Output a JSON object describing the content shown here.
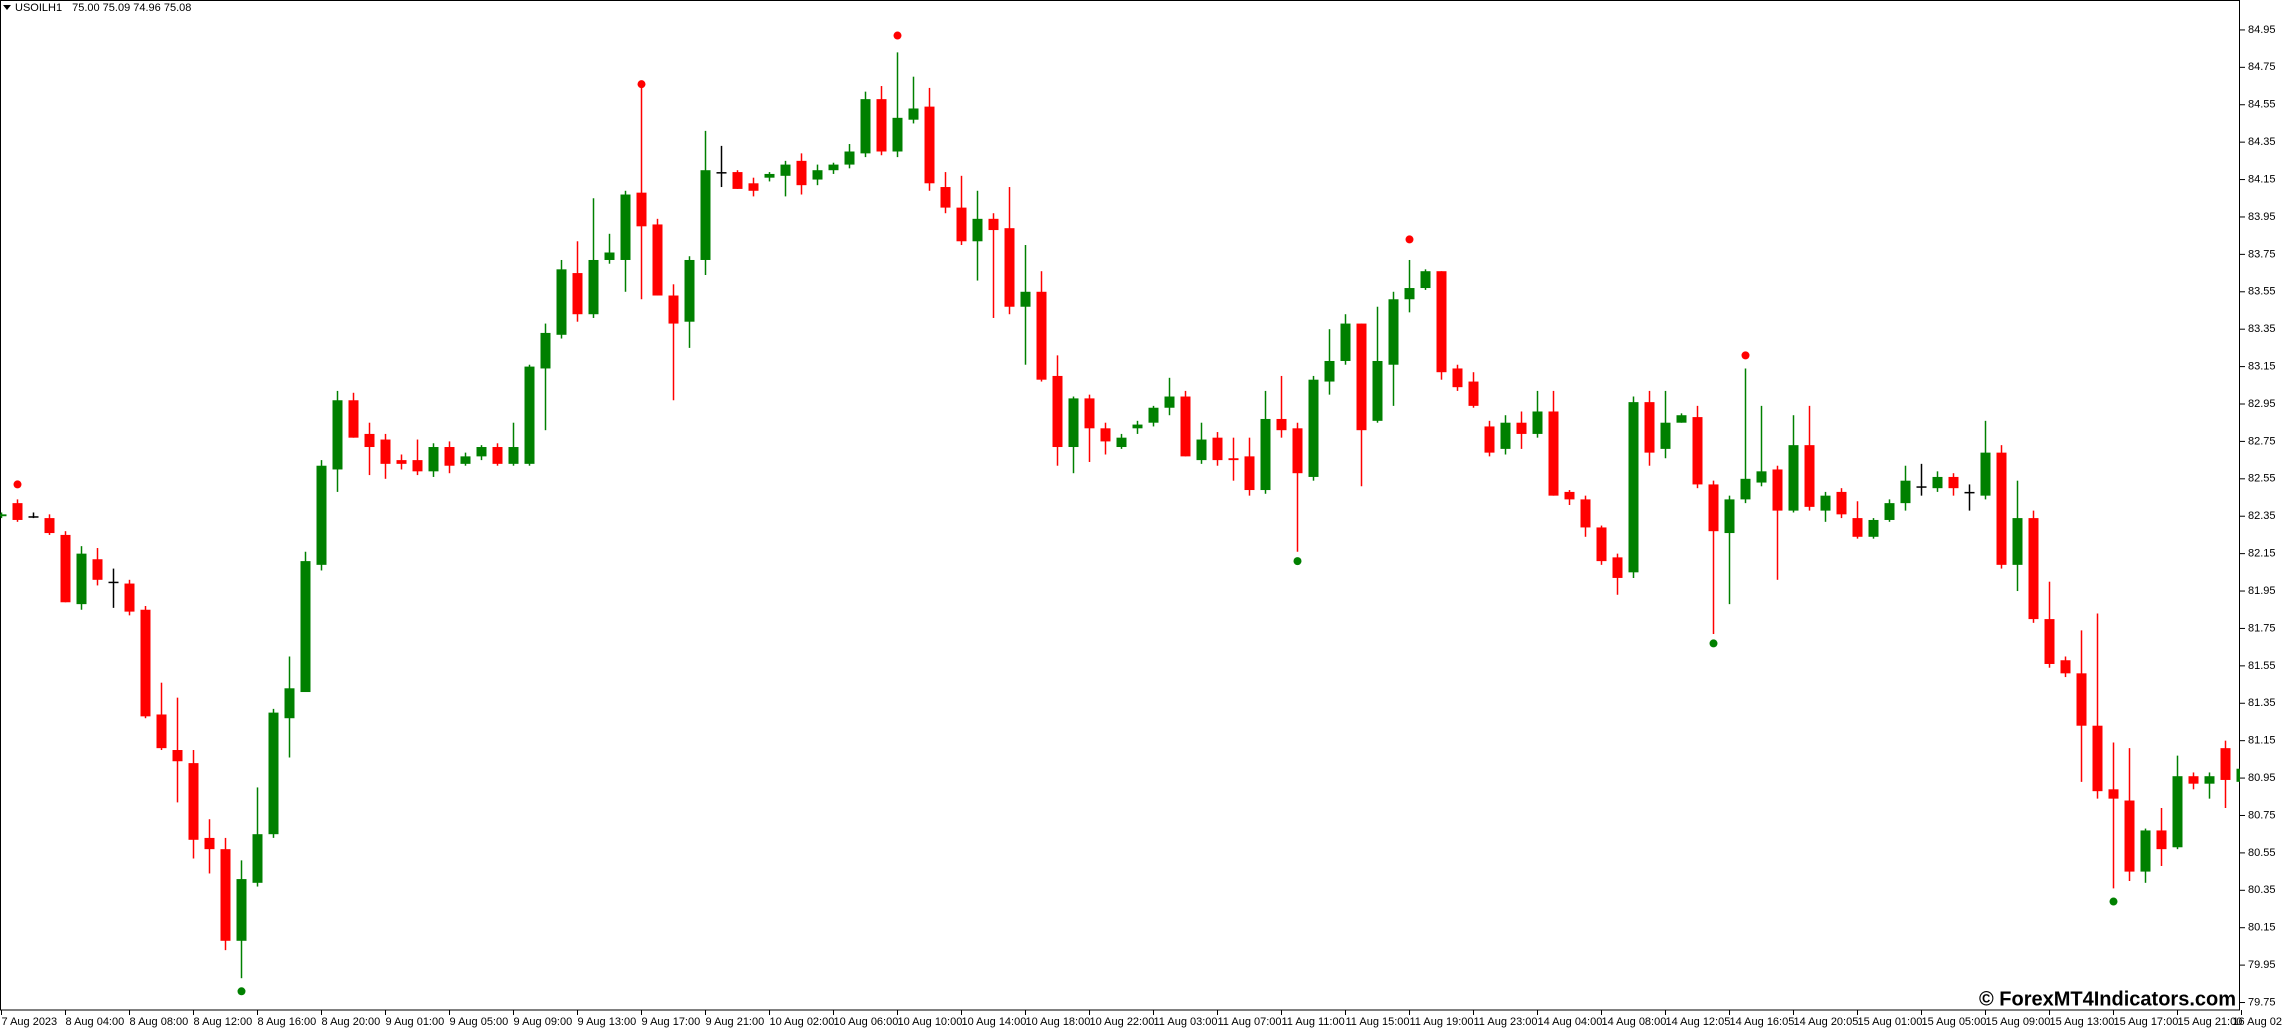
{
  "chart_data": {
    "type": "candlestick",
    "title": "USOILH1",
    "subtitle": "75.00 75.09 74.96 75.08",
    "annotation": "© ForexMT4Indicators.com",
    "up_color": "#008000",
    "down_color": "#ff0000",
    "doji_color": "#000000",
    "categories": [
      "7 Aug 2023",
      null,
      null,
      null,
      "8 Aug 04:00",
      null,
      null,
      null,
      "8 Aug 08:00",
      null,
      null,
      null,
      "8 Aug 12:00",
      null,
      null,
      null,
      "8 Aug 16:00",
      null,
      null,
      null,
      "8 Aug 20:00",
      null,
      null,
      null,
      "9 Aug 01:00",
      null,
      null,
      null,
      "9 Aug 05:00",
      null,
      null,
      null,
      "9 Aug 09:00",
      null,
      null,
      null,
      "9 Aug 13:00",
      null,
      null,
      null,
      "9 Aug 17:00",
      null,
      null,
      null,
      "9 Aug 21:00",
      null,
      null,
      null,
      "10 Aug 02:00",
      null,
      null,
      null,
      "10 Aug 06:00",
      null,
      null,
      null,
      "10 Aug 10:00",
      null,
      null,
      null,
      "10 Aug 14:00",
      null,
      null,
      null,
      "10 Aug 18:00",
      null,
      null,
      null,
      "10 Aug 22:00",
      null,
      null,
      null,
      "11 Aug 03:00",
      null,
      null,
      null,
      "11 Aug 07:00",
      null,
      null,
      null,
      "11 Aug 11:00",
      null,
      null,
      null,
      "11 Aug 15:00",
      null,
      null,
      null,
      "11 Aug 19:00",
      null,
      null,
      null,
      "11 Aug 23:00",
      null,
      null,
      null,
      "14 Aug 04:00",
      null,
      null,
      null,
      "14 Aug 08:00",
      null,
      null,
      null,
      "14 Aug 12:05",
      null,
      null,
      null,
      "14 Aug 16:05",
      null,
      null,
      null,
      "14 Aug 20:05",
      null,
      null,
      null,
      "15 Aug 01:00",
      null,
      null,
      null,
      "15 Aug 05:00",
      null,
      null,
      null,
      "15 Aug 09:00",
      null,
      null,
      null,
      "15 Aug 13:00",
      null,
      null,
      null,
      "15 Aug 17:00",
      null,
      null,
      null,
      "15 Aug 21:00",
      null,
      null,
      null,
      "16 Aug 02"
    ],
    "open": [
      82.35,
      82.42,
      82.35,
      82.34,
      82.25,
      81.88,
      82.12,
      82.0,
      81.99,
      81.85,
      81.29,
      81.1,
      81.03,
      80.63,
      80.57,
      80.08,
      80.39,
      80.65,
      81.27,
      81.41,
      82.09,
      82.6,
      82.97,
      82.79,
      82.76,
      82.65,
      82.65,
      82.59,
      82.72,
      82.63,
      82.67,
      82.72,
      82.63,
      82.63,
      83.14,
      83.32,
      83.65,
      83.43,
      83.72,
      83.72,
      84.08,
      83.91,
      83.53,
      83.39,
      83.72,
      84.19,
      84.19,
      84.13,
      84.16,
      84.17,
      84.25,
      84.15,
      84.2,
      84.23,
      84.29,
      84.58,
      84.3,
      84.47,
      84.54,
      84.11,
      84.0,
      83.82,
      83.94,
      83.89,
      83.47,
      83.55,
      83.1,
      82.72,
      82.98,
      82.82,
      82.72,
      82.82,
      82.85,
      82.93,
      82.99,
      82.65,
      82.77,
      82.66,
      82.67,
      82.49,
      82.87,
      82.82,
      82.56,
      83.07,
      83.18,
      83.38,
      82.86,
      83.16,
      83.51,
      83.57,
      83.66,
      83.14,
      83.07,
      82.83,
      82.71,
      82.85,
      82.79,
      82.91,
      82.48,
      82.44,
      82.29,
      82.13,
      82.05,
      82.96,
      82.71,
      82.85,
      82.88,
      82.52,
      82.26,
      82.44,
      82.53,
      82.6,
      82.38,
      82.73,
      82.38,
      82.48,
      82.34,
      82.24,
      82.33,
      82.42,
      82.51,
      82.5,
      82.56,
      82.48,
      82.46,
      82.69,
      82.09,
      82.34,
      81.8,
      81.58,
      81.51,
      81.23,
      80.89,
      80.83,
      80.45,
      80.67,
      80.58,
      80.96,
      80.92,
      81.11,
      80.93
    ],
    "high": [
      82.37,
      82.44,
      82.37,
      82.36,
      82.27,
      82.19,
      82.18,
      82.07,
      82.01,
      81.87,
      81.46,
      81.38,
      81.1,
      80.73,
      80.63,
      80.51,
      80.9,
      81.32,
      81.6,
      82.16,
      82.65,
      83.02,
      83.01,
      82.85,
      82.79,
      82.68,
      82.76,
      82.74,
      82.75,
      82.69,
      82.73,
      82.74,
      82.85,
      83.16,
      83.38,
      83.72,
      83.82,
      84.05,
      83.86,
      84.09,
      84.64,
      83.94,
      83.59,
      83.74,
      84.41,
      84.33,
      84.2,
      84.16,
      84.19,
      84.25,
      84.29,
      84.23,
      84.24,
      84.34,
      84.62,
      84.65,
      84.83,
      84.7,
      84.64,
      84.19,
      84.17,
      84.09,
      83.97,
      84.11,
      83.8,
      83.66,
      83.21,
      82.99,
      83.0,
      82.85,
      82.79,
      82.86,
      82.94,
      83.09,
      83.02,
      82.85,
      82.8,
      82.77,
      82.77,
      83.02,
      83.1,
      82.85,
      83.1,
      83.35,
      83.43,
      83.38,
      83.47,
      83.55,
      83.72,
      83.67,
      83.66,
      83.16,
      83.12,
      82.86,
      82.89,
      82.91,
      83.02,
      83.02,
      82.49,
      82.46,
      82.3,
      82.15,
      82.99,
      83.02,
      83.02,
      82.9,
      82.94,
      82.54,
      82.46,
      83.14,
      82.94,
      82.62,
      82.89,
      82.94,
      82.48,
      82.5,
      82.43,
      82.34,
      82.44,
      82.62,
      82.63,
      82.59,
      82.58,
      82.52,
      82.86,
      82.73,
      82.54,
      82.38,
      82.0,
      81.6,
      81.74,
      81.83,
      81.14,
      81.11,
      80.68,
      80.79,
      81.07,
      80.98,
      80.98,
      81.15,
      81.02
    ],
    "low": [
      82.34,
      82.32,
      82.34,
      82.25,
      81.89,
      81.85,
      81.98,
      81.86,
      81.82,
      81.27,
      81.1,
      80.82,
      80.52,
      80.44,
      80.03,
      79.88,
      80.37,
      80.63,
      81.06,
      81.41,
      82.06,
      82.48,
      82.77,
      82.57,
      82.55,
      82.6,
      82.57,
      82.56,
      82.58,
      82.62,
      82.65,
      82.62,
      82.62,
      82.62,
      82.81,
      83.3,
      83.39,
      83.41,
      83.7,
      83.55,
      83.51,
      83.53,
      82.97,
      83.25,
      83.64,
      84.11,
      84.1,
      84.06,
      84.14,
      84.06,
      84.07,
      84.12,
      84.18,
      84.21,
      84.27,
      84.28,
      84.27,
      84.45,
      84.09,
      83.97,
      83.8,
      83.61,
      83.41,
      83.43,
      83.16,
      83.07,
      82.62,
      82.58,
      82.64,
      82.68,
      82.71,
      82.79,
      82.83,
      82.89,
      82.67,
      82.63,
      82.62,
      82.54,
      82.46,
      82.47,
      82.77,
      82.16,
      82.54,
      83.0,
      83.16,
      82.51,
      82.85,
      82.94,
      83.44,
      83.56,
      83.08,
      83.02,
      82.93,
      82.67,
      82.68,
      82.71,
      82.77,
      82.46,
      82.41,
      82.24,
      82.09,
      81.93,
      82.02,
      82.62,
      82.66,
      82.85,
      82.5,
      81.72,
      81.88,
      82.42,
      82.51,
      82.01,
      82.37,
      82.38,
      82.32,
      82.34,
      82.23,
      82.23,
      82.32,
      82.38,
      82.46,
      82.48,
      82.46,
      82.38,
      82.44,
      82.07,
      81.95,
      81.78,
      81.54,
      81.49,
      80.93,
      80.84,
      80.36,
      80.4,
      80.39,
      80.48,
      80.57,
      80.89,
      80.84,
      80.79,
      80.91
    ],
    "close": [
      82.36,
      82.33,
      82.35,
      82.26,
      81.89,
      82.15,
      82.01,
      82.0,
      81.84,
      81.28,
      81.11,
      81.04,
      80.62,
      80.57,
      80.08,
      80.41,
      80.65,
      81.3,
      81.43,
      82.11,
      82.62,
      82.97,
      82.77,
      82.72,
      82.63,
      82.63,
      82.59,
      82.72,
      82.62,
      82.67,
      82.72,
      82.63,
      82.72,
      83.15,
      83.33,
      83.67,
      83.43,
      83.72,
      83.76,
      84.07,
      83.9,
      83.53,
      83.38,
      83.72,
      84.2,
      84.19,
      84.1,
      84.09,
      84.18,
      84.23,
      84.12,
      84.2,
      84.23,
      84.3,
      84.58,
      84.3,
      84.48,
      84.53,
      84.13,
      84.0,
      83.82,
      83.94,
      83.88,
      83.47,
      83.55,
      83.08,
      82.72,
      82.98,
      82.82,
      82.75,
      82.77,
      82.84,
      82.93,
      82.99,
      82.67,
      82.76,
      82.65,
      82.65,
      82.49,
      82.87,
      82.81,
      82.58,
      83.08,
      83.18,
      83.38,
      82.81,
      83.18,
      83.51,
      83.57,
      83.66,
      83.12,
      83.04,
      82.94,
      82.69,
      82.85,
      82.79,
      82.91,
      82.46,
      82.44,
      82.29,
      82.11,
      82.02,
      82.96,
      82.69,
      82.85,
      82.89,
      82.52,
      82.27,
      82.44,
      82.55,
      82.59,
      82.38,
      82.73,
      82.4,
      82.46,
      82.36,
      82.24,
      82.33,
      82.42,
      82.54,
      82.51,
      82.56,
      82.5,
      82.48,
      82.69,
      82.09,
      82.34,
      81.8,
      81.56,
      81.51,
      81.23,
      80.88,
      80.84,
      80.45,
      80.67,
      80.57,
      80.96,
      80.92,
      80.96,
      80.94,
      81.0
    ],
    "sell_signals": {
      "color": "#ff0000",
      "indices": [
        1,
        40,
        56,
        88,
        109
      ],
      "values": [
        82.52,
        84.66,
        84.92,
        83.83,
        83.21
      ]
    },
    "buy_signals": {
      "color": "#008000",
      "indices": [
        15,
        81,
        107,
        132
      ],
      "values": [
        79.81,
        82.11,
        81.67,
        80.29
      ]
    },
    "ylim": [
      79.71,
      85.11
    ],
    "yticks": [
      84.95,
      84.75,
      84.55,
      84.35,
      84.15,
      83.95,
      83.75,
      83.55,
      83.35,
      83.15,
      82.95,
      82.75,
      82.55,
      82.35,
      82.15,
      81.95,
      81.75,
      81.55,
      81.35,
      81.15,
      80.95,
      80.75,
      80.55,
      80.35,
      80.15,
      79.95,
      79.75
    ]
  }
}
